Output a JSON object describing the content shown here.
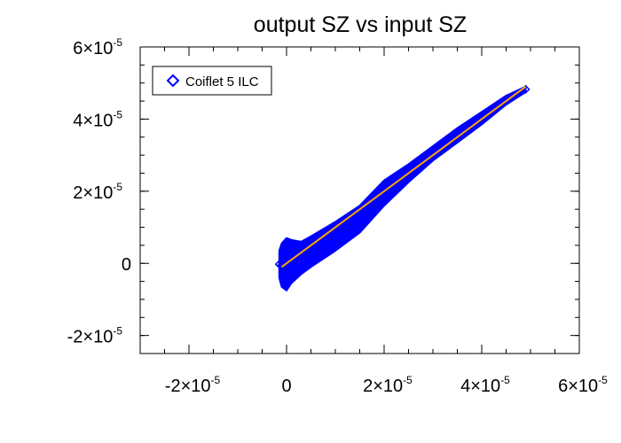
{
  "chart_data": {
    "type": "scatter",
    "title": "output SZ vs input SZ",
    "xlabel": "",
    "ylabel": "",
    "xlim": [
      -3e-05,
      6e-05
    ],
    "ylim": [
      -2.5e-05,
      6e-05
    ],
    "x_ticks": [
      {
        "value": -2e-05,
        "mant": "-2×10",
        "exp": "-5"
      },
      {
        "value": 0,
        "mant": "0",
        "exp": ""
      },
      {
        "value": 2e-05,
        "mant": "2×10",
        "exp": "-5"
      },
      {
        "value": 4e-05,
        "mant": "4×10",
        "exp": "-5"
      },
      {
        "value": 6e-05,
        "mant": "6×10",
        "exp": "-5"
      }
    ],
    "y_ticks": [
      {
        "value": -2e-05,
        "mant": "-2×10",
        "exp": "-5"
      },
      {
        "value": 0,
        "mant": "0",
        "exp": ""
      },
      {
        "value": 2e-05,
        "mant": "2×10",
        "exp": "-5"
      },
      {
        "value": 4e-05,
        "mant": "4×10",
        "exp": "-5"
      },
      {
        "value": 6e-05,
        "mant": "6×10",
        "exp": "-5"
      }
    ],
    "legend": {
      "placement": "top-left",
      "label": "Coiflet 5 ILC",
      "marker": "diamond"
    },
    "series": [
      {
        "name": "Coiflet 5 ILC",
        "kind": "scatter-band",
        "color": "#0000ff",
        "x": [
          -1.5e-06,
          -1e-06,
          0,
          1e-06,
          3e-06,
          5e-06,
          1e-05,
          1.5e-05,
          2e-05,
          2.5e-05,
          3e-05,
          3.5e-05,
          4e-05,
          4.5e-05,
          4.9e-05
        ],
        "y_low": [
          -4e-06,
          -6.5e-06,
          -7.5e-06,
          -5.5e-06,
          -3e-06,
          -1e-06,
          3.5e-06,
          8.5e-06,
          1.6e-05,
          2.25e-05,
          2.85e-05,
          3.35e-05,
          3.85e-05,
          4.4e-05,
          4.75e-05
        ],
        "y_high": [
          3.5e-06,
          5.5e-06,
          7e-06,
          6.5e-06,
          6e-06,
          7.5e-06,
          1.15e-05,
          1.6e-05,
          2.3e-05,
          2.75e-05,
          3.25e-05,
          3.75e-05,
          4.2e-05,
          4.65e-05,
          4.9e-05
        ]
      }
    ],
    "fit_line": {
      "color": "#ffa500",
      "x": [
        -1e-06,
        4.9e-05
      ],
      "y": [
        -1e-06,
        4.9e-05
      ]
    },
    "grid": false
  }
}
